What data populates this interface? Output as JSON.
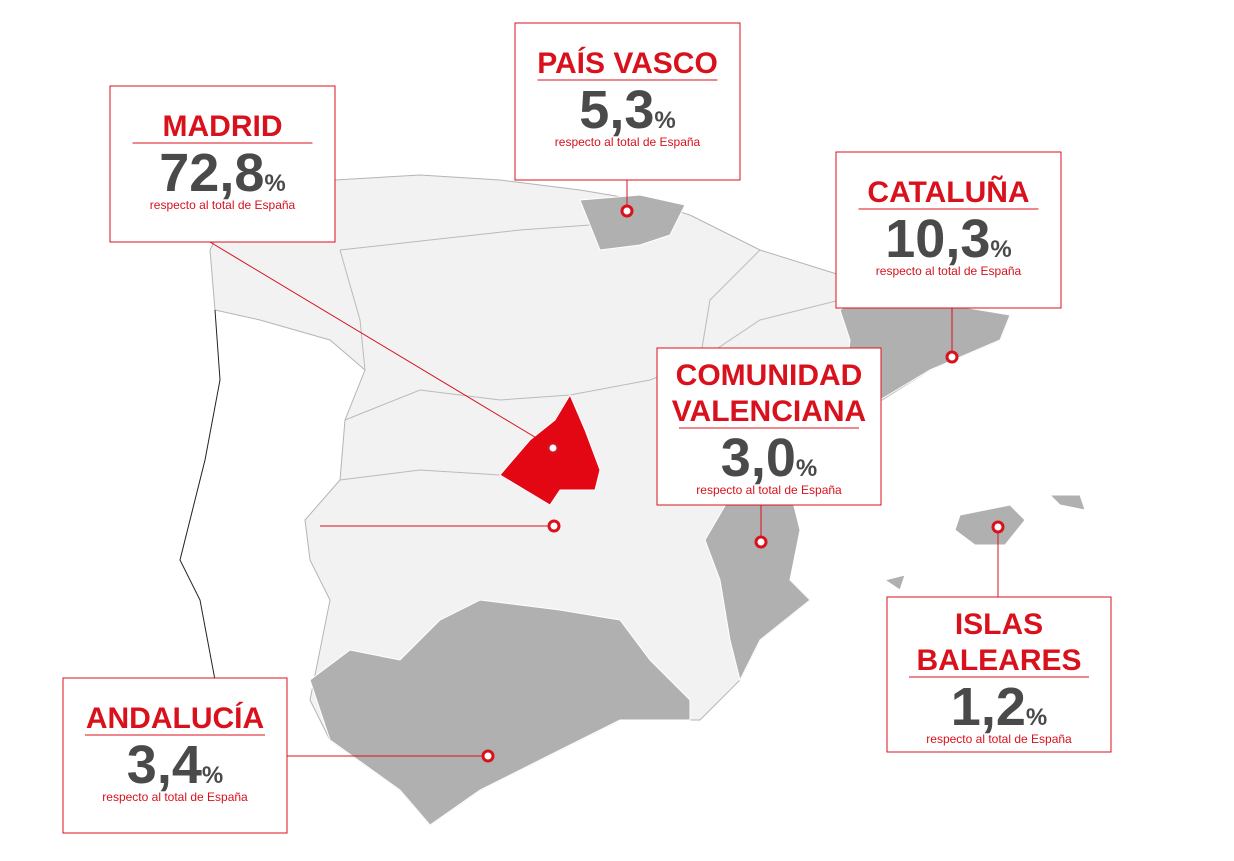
{
  "regions": [
    {
      "name_lines": [
        "MADRID"
      ],
      "value": "72,8",
      "unit": "%",
      "note": "respecto al total de España"
    },
    {
      "name_lines": [
        "PAÍS VASCO"
      ],
      "value": "5,3",
      "unit": "%",
      "note": "respecto al total de España"
    },
    {
      "name_lines": [
        "CATALUÑA"
      ],
      "value": "10,3",
      "unit": "%",
      "note": "respecto al total de España"
    },
    {
      "name_lines": [
        "COMUNIDAD",
        "VALENCIANA"
      ],
      "value": "3,0",
      "unit": "%",
      "note": "respecto al total de España"
    },
    {
      "name_lines": [
        "ISLAS",
        "BALEARES"
      ],
      "value": "1,2",
      "unit": "%",
      "note": "respecto al total de España"
    },
    {
      "name_lines": [
        "ANDALUCÍA"
      ],
      "value": "3,4",
      "unit": "%",
      "note": "respecto al total de España"
    }
  ]
}
